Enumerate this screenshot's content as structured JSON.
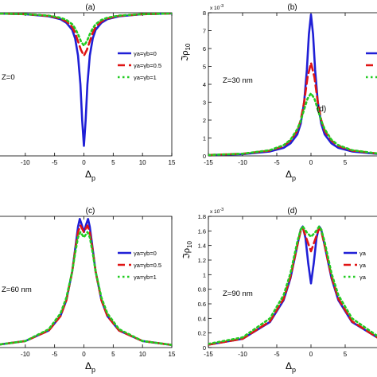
{
  "chart_data": [
    {
      "type": "line",
      "panel_label": "(a)",
      "annotation": "Z=0",
      "xlabel_base": "Δ",
      "xlabel_sub": "p",
      "ylabel": "",
      "y_scale_note": "",
      "xlim": [
        -15,
        15
      ],
      "ylim": [
        0,
        1
      ],
      "x_ticks": [
        -10,
        -5,
        0,
        5,
        10,
        15
      ],
      "y_ticks": [],
      "legend_position": "right",
      "legend": [
        "γa=γb=0",
        "γa=γb=0.5",
        "γa=γb=1"
      ],
      "series": [
        {
          "x": [
            -15,
            -10,
            -6,
            -4,
            -3,
            -2,
            -1.5,
            -1,
            -0.6,
            -0.3,
            0,
            0.3,
            0.6,
            1,
            1.5,
            2,
            3,
            4,
            6,
            10,
            15
          ],
          "y": [
            0.995,
            0.99,
            0.975,
            0.955,
            0.93,
            0.88,
            0.82,
            0.7,
            0.5,
            0.25,
            0.07,
            0.25,
            0.5,
            0.7,
            0.82,
            0.88,
            0.93,
            0.955,
            0.975,
            0.99,
            0.995
          ]
        },
        {
          "x": [
            -15,
            -10,
            -6,
            -4,
            -3,
            -2,
            -1.5,
            -1,
            -0.5,
            0,
            0.5,
            1,
            1.5,
            2,
            3,
            4,
            6,
            10,
            15
          ],
          "y": [
            0.995,
            0.99,
            0.978,
            0.96,
            0.94,
            0.9,
            0.86,
            0.8,
            0.74,
            0.7,
            0.74,
            0.8,
            0.86,
            0.9,
            0.94,
            0.96,
            0.978,
            0.99,
            0.995
          ]
        },
        {
          "x": [
            -15,
            -10,
            -6,
            -4,
            -3,
            -2,
            -1.5,
            -1,
            -0.5,
            0,
            0.5,
            1,
            1.5,
            2,
            3,
            4,
            6,
            10,
            15
          ],
          "y": [
            0.995,
            0.99,
            0.98,
            0.965,
            0.95,
            0.92,
            0.89,
            0.85,
            0.8,
            0.77,
            0.8,
            0.85,
            0.89,
            0.92,
            0.95,
            0.965,
            0.98,
            0.99,
            0.995
          ]
        }
      ]
    },
    {
      "type": "line",
      "panel_label": "(b)",
      "annotation": "Z=30 nm",
      "extra_label": "(d)",
      "xlabel_base": "Δ",
      "xlabel_sub": "p",
      "ylabel": "ℑρ10",
      "y_scale_note": "x 10-3",
      "xlim": [
        -15,
        10
      ],
      "ylim": [
        0,
        8
      ],
      "x_ticks": [
        -15,
        -10,
        -5,
        0,
        5
      ],
      "y_ticks": [
        0,
        1,
        2,
        3,
        4,
        5,
        6,
        7,
        8
      ],
      "legend_position": "right",
      "legend": [
        "",
        "",
        ""
      ],
      "series": [
        {
          "x": [
            -15,
            -10,
            -6,
            -4,
            -3,
            -2,
            -1.5,
            -1,
            -0.6,
            -0.3,
            0,
            0.3,
            0.6,
            1,
            1.5,
            2,
            3,
            4,
            6,
            10
          ],
          "y": [
            0.05,
            0.1,
            0.25,
            0.45,
            0.7,
            1.2,
            1.8,
            3.0,
            4.8,
            6.8,
            7.9,
            6.8,
            4.8,
            3.0,
            1.8,
            1.2,
            0.7,
            0.45,
            0.25,
            0.1
          ]
        },
        {
          "x": [
            -15,
            -10,
            -6,
            -4,
            -3,
            -2,
            -1.5,
            -1,
            -0.5,
            0,
            0.5,
            1,
            1.5,
            2,
            3,
            4,
            6,
            10
          ],
          "y": [
            0.05,
            0.12,
            0.3,
            0.55,
            0.85,
            1.4,
            2.0,
            3.0,
            4.4,
            5.2,
            4.4,
            3.0,
            2.0,
            1.4,
            0.85,
            0.55,
            0.3,
            0.12
          ]
        },
        {
          "x": [
            -15,
            -10,
            -6,
            -4,
            -3,
            -2,
            -1.5,
            -1,
            -0.5,
            0,
            0.5,
            1,
            1.5,
            2,
            3,
            4,
            6,
            10
          ],
          "y": [
            0.05,
            0.12,
            0.32,
            0.6,
            0.9,
            1.5,
            1.95,
            2.6,
            3.2,
            3.5,
            3.2,
            2.6,
            1.95,
            1.5,
            0.9,
            0.6,
            0.32,
            0.12
          ]
        }
      ]
    },
    {
      "type": "line",
      "panel_label": "(c)",
      "annotation": "Z=60 nm",
      "xlabel_base": "Δ",
      "xlabel_sub": "p",
      "ylabel": "",
      "y_scale_note": "",
      "xlim": [
        -15,
        15
      ],
      "ylim": [
        0,
        1
      ],
      "x_ticks": [
        -10,
        -5,
        0,
        5,
        10,
        15
      ],
      "y_ticks": [],
      "legend_position": "right",
      "legend": [
        "γa=γb=0",
        "γa=γb=0.5",
        "γa=γb=1"
      ],
      "series": [
        {
          "x": [
            -15,
            -10,
            -6,
            -4,
            -3,
            -2,
            -1.5,
            -1,
            -0.7,
            -0.4,
            0,
            0.4,
            0.7,
            1,
            1.5,
            2,
            3,
            4,
            6,
            10,
            15
          ],
          "y": [
            0.02,
            0.05,
            0.13,
            0.24,
            0.36,
            0.58,
            0.75,
            0.92,
            0.98,
            0.94,
            0.88,
            0.94,
            0.98,
            0.92,
            0.75,
            0.58,
            0.36,
            0.24,
            0.13,
            0.05,
            0.02
          ]
        },
        {
          "x": [
            -15,
            -10,
            -6,
            -4,
            -3,
            -2,
            -1.5,
            -1,
            -0.6,
            0,
            0.6,
            1,
            1.5,
            2,
            3,
            4,
            6,
            10,
            15
          ],
          "y": [
            0.02,
            0.05,
            0.13,
            0.24,
            0.36,
            0.58,
            0.74,
            0.88,
            0.93,
            0.88,
            0.93,
            0.88,
            0.74,
            0.58,
            0.36,
            0.24,
            0.13,
            0.05,
            0.02
          ]
        },
        {
          "x": [
            -15,
            -10,
            -6,
            -4,
            -3,
            -2,
            -1.5,
            -1,
            -0.6,
            0,
            0.6,
            1,
            1.5,
            2,
            3,
            4,
            6,
            10,
            15
          ],
          "y": [
            0.02,
            0.05,
            0.14,
            0.26,
            0.38,
            0.58,
            0.72,
            0.84,
            0.88,
            0.84,
            0.88,
            0.84,
            0.72,
            0.58,
            0.38,
            0.26,
            0.14,
            0.05,
            0.02
          ]
        }
      ]
    },
    {
      "type": "line",
      "panel_label": "(d)",
      "annotation": "Z=90 nm",
      "xlabel_base": "Δ",
      "xlabel_sub": "p",
      "ylabel": "ℑρ10",
      "y_scale_note": "x 10-3",
      "xlim": [
        -15,
        10
      ],
      "ylim": [
        0,
        1.8
      ],
      "x_ticks": [
        -15,
        -10,
        -5,
        0,
        5
      ],
      "y_ticks": [
        0,
        0.2,
        0.4,
        0.6,
        0.8,
        1,
        1.2,
        1.4,
        1.6,
        1.8
      ],
      "legend_position": "right",
      "legend": [
        "γa",
        "γa",
        "γa"
      ],
      "series": [
        {
          "x": [
            -15,
            -10,
            -6,
            -4,
            -3,
            -2,
            -1.5,
            -1.2,
            -0.8,
            -0.4,
            0,
            0.4,
            0.8,
            1.2,
            1.5,
            2,
            3,
            4,
            6,
            10
          ],
          "y": [
            0.04,
            0.12,
            0.35,
            0.65,
            0.95,
            1.4,
            1.62,
            1.66,
            1.5,
            1.15,
            0.88,
            1.15,
            1.5,
            1.66,
            1.62,
            1.4,
            0.95,
            0.65,
            0.35,
            0.12
          ]
        },
        {
          "x": [
            -15,
            -10,
            -6,
            -4,
            -3,
            -2,
            -1.5,
            -1.2,
            -0.6,
            0,
            0.6,
            1.2,
            1.5,
            2,
            3,
            4,
            6,
            10
          ],
          "y": [
            0.04,
            0.12,
            0.36,
            0.67,
            0.97,
            1.4,
            1.6,
            1.64,
            1.48,
            1.32,
            1.48,
            1.64,
            1.6,
            1.4,
            0.97,
            0.67,
            0.36,
            0.12
          ]
        },
        {
          "x": [
            -15,
            -10,
            -6,
            -4,
            -3,
            -2,
            -1.5,
            -1.2,
            -0.6,
            0,
            0.6,
            1.2,
            1.5,
            2,
            3,
            4,
            6,
            10
          ],
          "y": [
            0.05,
            0.14,
            0.4,
            0.72,
            1.02,
            1.45,
            1.62,
            1.66,
            1.58,
            1.52,
            1.58,
            1.66,
            1.62,
            1.45,
            1.02,
            0.72,
            0.4,
            0.14
          ]
        }
      ]
    }
  ],
  "style": {
    "series_colors": [
      "#1f1fd6",
      "#e01414",
      "#22cc22"
    ],
    "series_dash": [
      "",
      "9,5",
      "2.5,3.5"
    ],
    "axis_color": "#000000"
  }
}
